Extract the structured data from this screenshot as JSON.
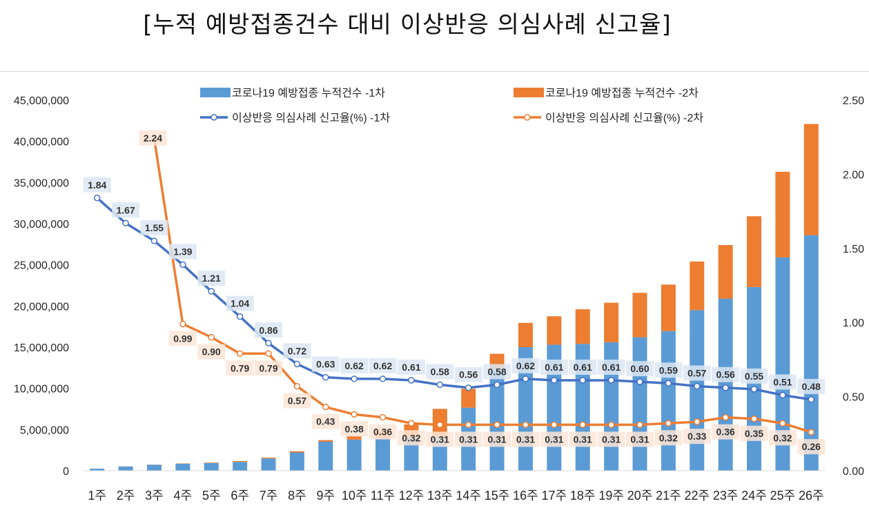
{
  "title": "[누적 예방접종건수 대비 이상반응 의심사례 신고율]",
  "colors": {
    "bar1": "#5b9bd5",
    "bar2": "#ed7d31",
    "line1": "#4472c4",
    "line2": "#ed7d31",
    "label_bg1": "#dce6f2",
    "label_bg2": "#fbe5d6",
    "grid": "#d9d9d9",
    "text": "#262626"
  },
  "chart_data": {
    "type": "bar",
    "combo": "stacked bar + line (secondary axis)",
    "categories": [
      "1주",
      "2주",
      "3주",
      "4주",
      "5주",
      "6주",
      "7주",
      "8주",
      "9주",
      "10주",
      "11주",
      "12주",
      "13주",
      "14주",
      "15주",
      "16주",
      "17주",
      "18주",
      "19주",
      "20주",
      "21주",
      "22주",
      "23주",
      "24주",
      "25주",
      "26주"
    ],
    "y_left": {
      "min": 0,
      "max": 45000000,
      "step": 5000000,
      "tick_labels": [
        "0",
        "5,000,000",
        "10,000,000",
        "15,000,000",
        "20,000,000",
        "25,000,000",
        "30,000,000",
        "35,000,000",
        "40,000,000",
        "45,000,000"
      ]
    },
    "y_right": {
      "min": 0,
      "max": 2.5,
      "step": 0.5,
      "tick_labels": [
        "0.00",
        "0.50",
        "1.00",
        "1.50",
        "2.00",
        "2.50"
      ]
    },
    "grid": false,
    "legend_position": "top",
    "bar_series": [
      {
        "name": "코로나19 예방접종 누적건수 -1차",
        "values": [
          250000,
          520000,
          720000,
          840000,
          920000,
          1080000,
          1480000,
          2220000,
          3520000,
          3780000,
          3950000,
          4130000,
          4210000,
          7650000,
          12300000,
          15000000,
          15300000,
          15400000,
          15600000,
          16200000,
          16950000,
          19500000,
          20900000,
          22300000,
          25900000,
          28600000
        ]
      },
      {
        "name": "코로나19 예방접종 누적건수 -2차",
        "values": [
          0,
          0,
          20000,
          40000,
          60000,
          90000,
          110000,
          150000,
          200000,
          450000,
          970000,
          1500000,
          3300000,
          2300000,
          1900000,
          2950000,
          3450000,
          4200000,
          4800000,
          5400000,
          5650000,
          5900000,
          6500000,
          8600000,
          10400000,
          13500000
        ]
      }
    ],
    "line_series": [
      {
        "name": "이상반응 의심사례 신고율(%) -1차",
        "values": [
          1.84,
          1.67,
          1.55,
          1.39,
          1.21,
          1.04,
          0.86,
          0.72,
          0.63,
          0.62,
          0.62,
          0.61,
          0.58,
          0.56,
          0.58,
          0.62,
          0.61,
          0.61,
          0.61,
          0.6,
          0.59,
          0.57,
          0.56,
          0.55,
          0.51,
          0.48
        ],
        "labels": [
          "1.84",
          "1.67",
          "1.55",
          "1.39",
          "1.21",
          "1.04",
          "0.86",
          "0.72",
          "0.63",
          "0.62",
          "0.62",
          "0.61",
          "0.58",
          "0.56",
          "0.58",
          "0.62",
          "0.61",
          "0.61",
          "0.61",
          "0.60",
          "0.59",
          "0.57",
          "0.56",
          "0.55",
          "0.51",
          "0.48"
        ]
      },
      {
        "name": "이상반응 의심사례 신고율(%) -2차",
        "start_index": 2,
        "values": [
          2.24,
          0.99,
          0.9,
          0.79,
          0.79,
          0.57,
          0.43,
          0.38,
          0.36,
          0.32,
          0.31,
          0.31,
          0.31,
          0.31,
          0.31,
          0.31,
          0.31,
          0.31,
          0.32,
          0.33,
          0.36,
          0.35,
          0.32,
          0.26
        ],
        "labels": [
          "2.24",
          "0.99",
          "0.90",
          "0.79",
          "0.79",
          "0.57",
          "0.43",
          "0.38",
          "0.36",
          "0.32",
          "0.31",
          "0.31",
          "0.31",
          "0.31",
          "0.31",
          "0.31",
          "0.31",
          "0.31",
          "0.32",
          "0.33",
          "0.36",
          "0.35",
          "0.32",
          "0.26"
        ]
      }
    ]
  }
}
